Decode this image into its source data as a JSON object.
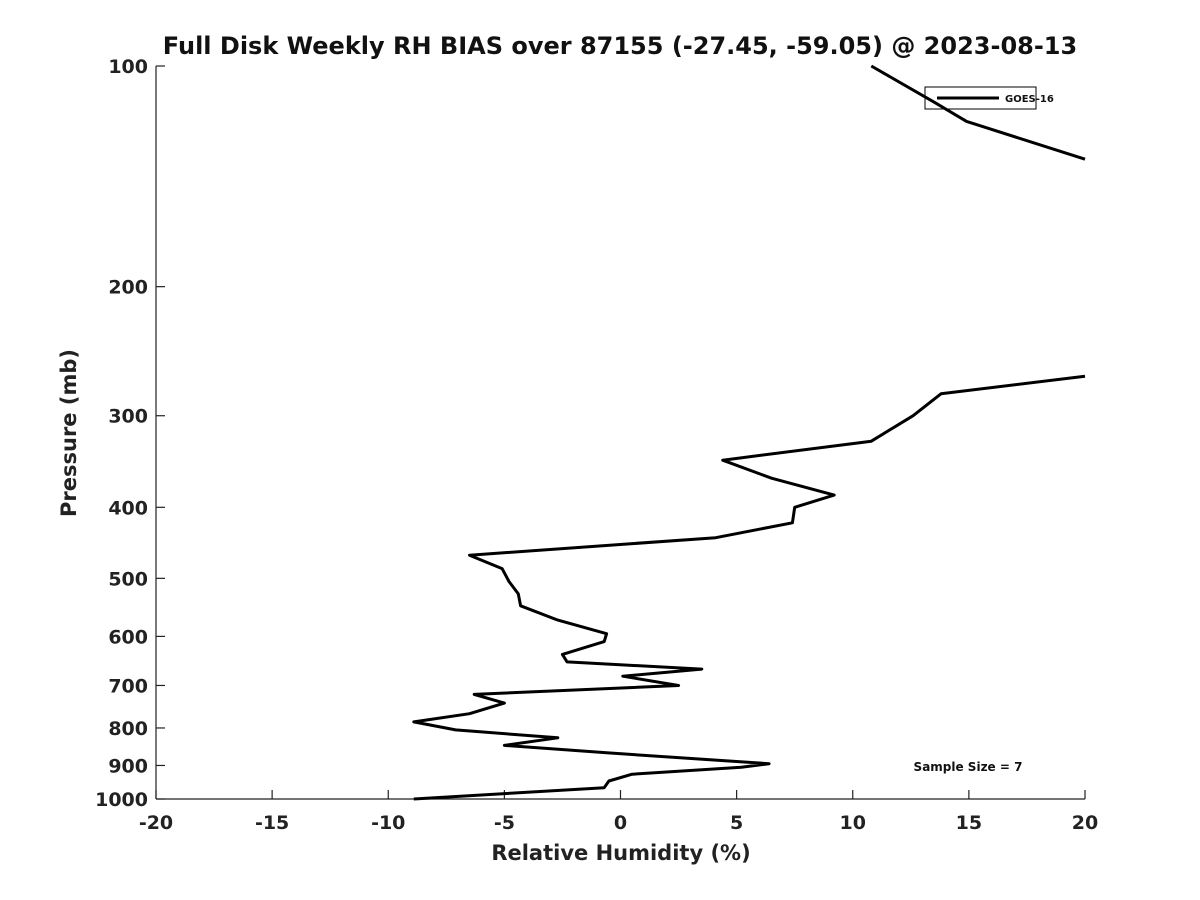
{
  "chart_data": {
    "type": "line",
    "title": "Full Disk Weekly RH BIAS over 87155 (-27.45, -59.05) @ 2023-08-13",
    "xlabel": "Relative Humidity (%)",
    "ylabel": "Pressure (mb)",
    "xlim": [
      -20,
      20
    ],
    "ylim": [
      1000,
      100
    ],
    "y_scale": "log",
    "y_reversed": true,
    "x_ticks": [
      "-20",
      "-15",
      "-10",
      "-5",
      "0",
      "5",
      "10",
      "15",
      "20"
    ],
    "y_ticks": [
      "100",
      "200",
      "300",
      "400",
      "500",
      "600",
      "700",
      "800",
      "900",
      "1000"
    ],
    "grid": false,
    "legend_position": "top-right",
    "annotation": "Sample Size = 7",
    "series": [
      {
        "name": "GOES-16",
        "color": "#000000",
        "segments": [
          [
            {
              "x": 10.8,
              "y": 100
            },
            {
              "x": 13.5,
              "y": 112
            },
            {
              "x": 14.9,
              "y": 119
            },
            {
              "x": 20.0,
              "y": 134
            }
          ],
          [
            {
              "x": 20.0,
              "y": 265
            },
            {
              "x": 13.8,
              "y": 280
            },
            {
              "x": 12.6,
              "y": 300
            },
            {
              "x": 10.8,
              "y": 325
            },
            {
              "x": 4.4,
              "y": 345
            },
            {
              "x": 6.5,
              "y": 365
            },
            {
              "x": 9.2,
              "y": 385
            },
            {
              "x": 7.5,
              "y": 400
            },
            {
              "x": 7.4,
              "y": 420
            },
            {
              "x": 4.1,
              "y": 440
            },
            {
              "x": -6.5,
              "y": 465
            },
            {
              "x": -5.1,
              "y": 485
            },
            {
              "x": -4.8,
              "y": 505
            },
            {
              "x": -4.4,
              "y": 525
            },
            {
              "x": -4.3,
              "y": 545
            },
            {
              "x": -2.7,
              "y": 570
            },
            {
              "x": -0.6,
              "y": 595
            },
            {
              "x": -0.7,
              "y": 610
            },
            {
              "x": -2.5,
              "y": 635
            },
            {
              "x": -2.3,
              "y": 650
            },
            {
              "x": 3.5,
              "y": 665
            },
            {
              "x": 0.1,
              "y": 680
            },
            {
              "x": 2.5,
              "y": 700
            },
            {
              "x": -6.3,
              "y": 720
            },
            {
              "x": -5.0,
              "y": 740
            },
            {
              "x": -6.5,
              "y": 765
            },
            {
              "x": -8.9,
              "y": 785
            },
            {
              "x": -7.1,
              "y": 805
            },
            {
              "x": -2.7,
              "y": 825
            },
            {
              "x": -5.0,
              "y": 845
            },
            {
              "x": -0.6,
              "y": 865
            },
            {
              "x": 6.4,
              "y": 895
            },
            {
              "x": 5.2,
              "y": 905
            },
            {
              "x": 0.5,
              "y": 925
            },
            {
              "x": -0.5,
              "y": 945
            },
            {
              "x": -0.7,
              "y": 965
            },
            {
              "x": -8.9,
              "y": 1000
            }
          ]
        ]
      }
    ]
  }
}
